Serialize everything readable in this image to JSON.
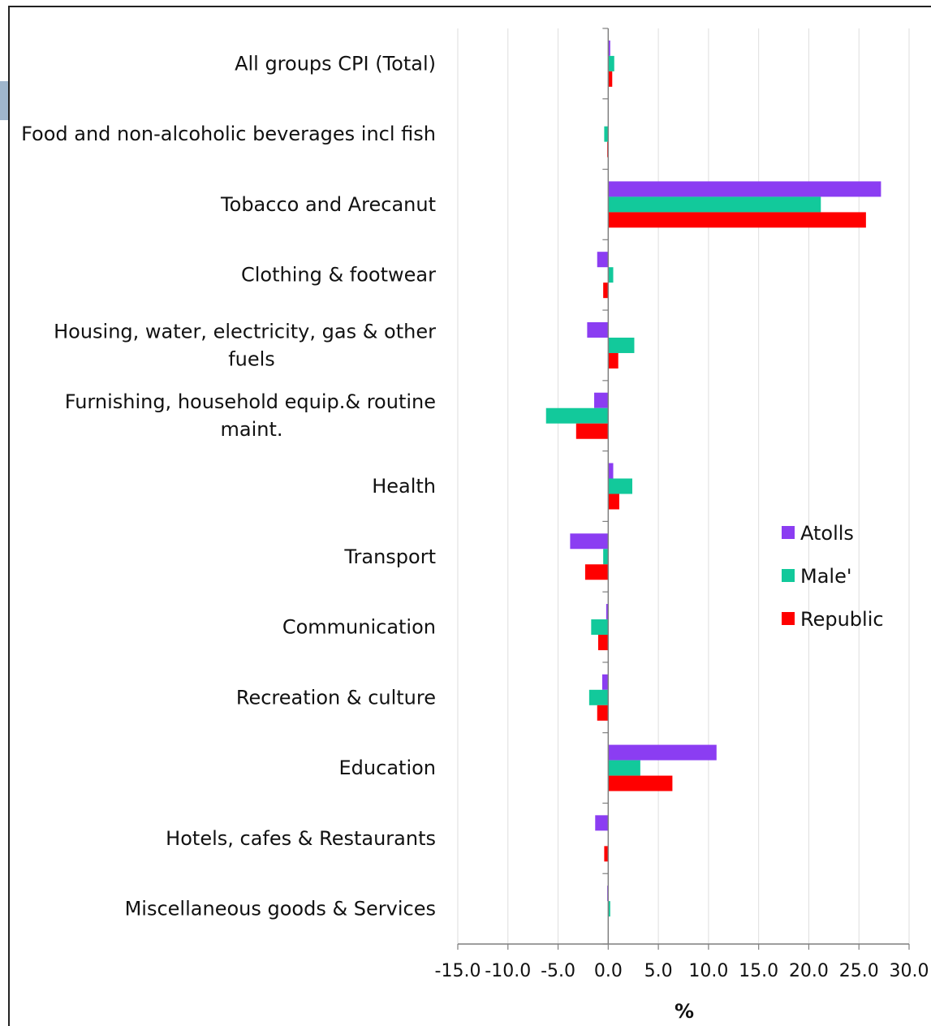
{
  "chart_data": {
    "type": "bar",
    "orientation": "horizontal",
    "categories": [
      "All groups CPI (Total)",
      "Food and non-alcoholic beverages incl fish",
      "Tobacco and Arecanut",
      "Clothing & footwear",
      "Housing, water, electricity, gas & other fuels",
      "Furnishing, household equip.& routine maint.",
      "Health",
      "Transport",
      "Communication",
      "Recreation & culture",
      "Education",
      "Hotels, cafes & Restaurants",
      "Miscellaneous goods & Services"
    ],
    "series": [
      {
        "name": "Atolls",
        "color": "#8b3df2",
        "values": [
          0.2,
          0.0,
          27.2,
          -1.1,
          -2.1,
          -1.4,
          0.5,
          -3.8,
          -0.2,
          -0.6,
          10.8,
          -1.3,
          -0.1
        ]
      },
      {
        "name": "Male'",
        "color": "#12c99b",
        "values": [
          0.6,
          -0.4,
          21.2,
          0.5,
          2.6,
          -6.2,
          2.4,
          -0.5,
          -1.7,
          -1.9,
          3.2,
          0.0,
          0.2
        ]
      },
      {
        "name": "Republic",
        "color": "#ff0000",
        "values": [
          0.4,
          -0.1,
          25.7,
          -0.5,
          1.0,
          -3.2,
          1.1,
          -2.3,
          -1.0,
          -1.1,
          6.4,
          -0.4,
          0.0
        ]
      }
    ],
    "xlim": [
      -15.0,
      30.0
    ],
    "xticks": [
      "-15.0",
      "-10.0",
      "-5.0",
      "0.0",
      "5.0",
      "10.0",
      "15.0",
      "20.0",
      "25.0",
      "30.0"
    ],
    "xlabel": "%",
    "ylabel": "",
    "title": "",
    "grid": "vertical",
    "legend_position": "right"
  }
}
